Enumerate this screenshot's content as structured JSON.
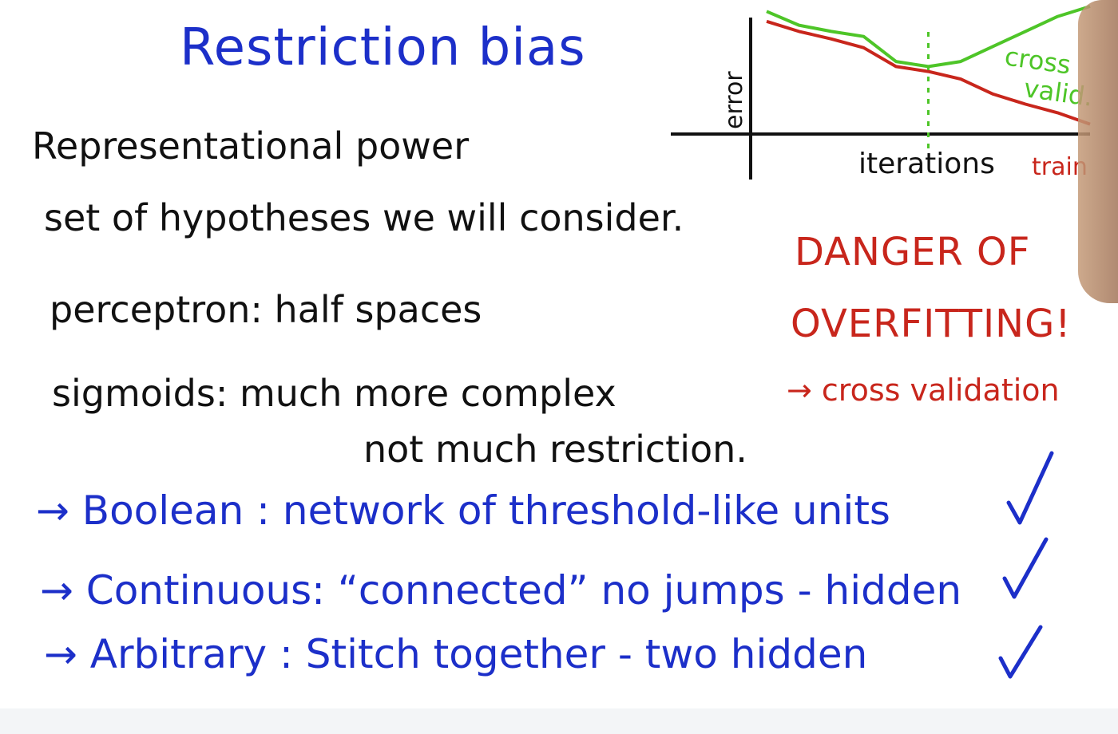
{
  "title": "Restriction bias",
  "black_notes": [
    "Representational power",
    "set of hypotheses we will consider.",
    "perceptron:  half spaces",
    "sigmoids:  much more complex",
    "not much restriction."
  ],
  "blue_lines": [
    "→ Boolean : network of threshold-like units",
    "→ Continuous: “connected” no jumps - hidden",
    "→ Arbitrary : Stitch together  - two hidden"
  ],
  "checkmark": "✓",
  "danger": {
    "line1": "DANGER OF",
    "line2": "OVERFITTING!",
    "line3": "→ cross validation"
  },
  "chart_data": {
    "type": "line",
    "title": "",
    "xlabel": "iterations",
    "ylabel": "error",
    "series": [
      {
        "name": "train",
        "color": "#c8261c",
        "x": [
          0,
          1,
          2,
          3,
          4,
          5,
          6,
          7,
          8,
          9,
          10
        ],
        "values": [
          0.88,
          0.8,
          0.74,
          0.67,
          0.52,
          0.48,
          0.42,
          0.3,
          0.22,
          0.15,
          0.06
        ]
      },
      {
        "name": "cross valid",
        "color": "#4ec528",
        "x": [
          0,
          1,
          2,
          3,
          4,
          5,
          6,
          7,
          8,
          9,
          10
        ],
        "values": [
          0.96,
          0.85,
          0.8,
          0.76,
          0.56,
          0.52,
          0.56,
          0.68,
          0.8,
          0.92,
          1.0
        ]
      }
    ],
    "marker_x": 5,
    "legend_labels": [
      "cross",
      "valid.",
      "train"
    ],
    "grid": false
  }
}
